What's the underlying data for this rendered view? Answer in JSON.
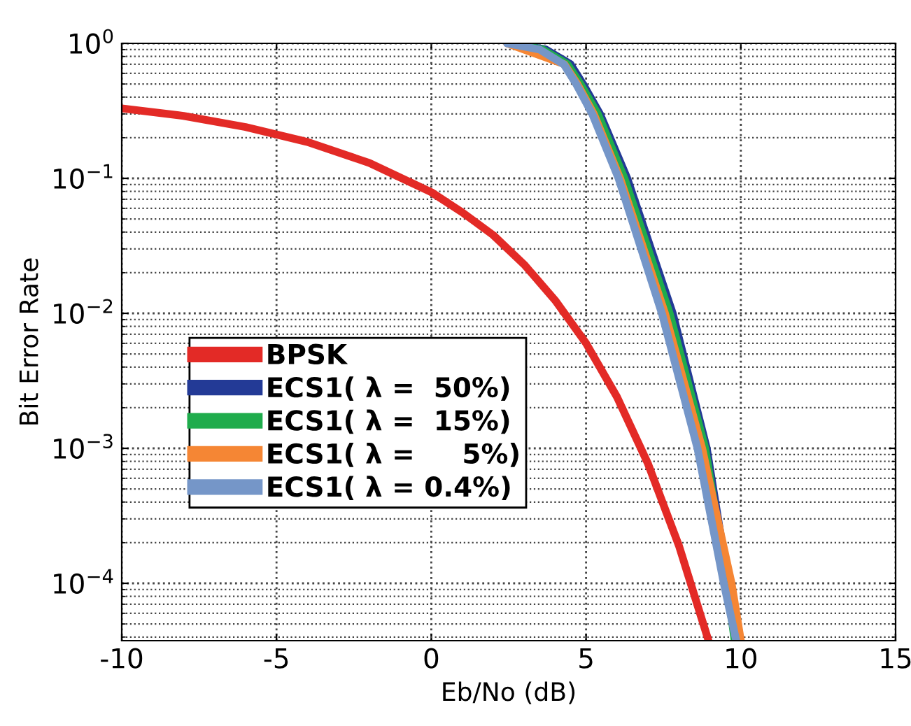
{
  "chart_data": {
    "type": "line",
    "xlabel": "Eb/No (dB)",
    "ylabel": "Bit Error Rate",
    "log": "y",
    "xlim": [
      -10,
      15
    ],
    "xticks": [
      -10,
      -5,
      0,
      5,
      10,
      15
    ],
    "ylim": [
      3.76e-05,
      1
    ],
    "yticks": [
      {
        "value": 0.0001,
        "label": "10$^{−4}$"
      },
      {
        "value": 0.001,
        "label": "10$^{−3}$"
      },
      {
        "value": 0.01,
        "label": "10$^{−2}$"
      },
      {
        "value": 0.1,
        "label": "10$^{−1}$"
      },
      {
        "value": 1,
        "label": "10$^{0}$"
      }
    ],
    "grid": true,
    "legend": "bottom left",
    "line_style": "solid",
    "marker": "none",
    "series": [
      {
        "name": "BPSK",
        "color": "#e32a26",
        "x": [
          -10,
          -8,
          -6,
          -4,
          -2,
          0,
          1,
          2,
          3,
          4,
          5,
          6,
          7,
          8,
          8.95
        ],
        "values": [
          0.33,
          0.29,
          0.24,
          0.186,
          0.13,
          0.079,
          0.056,
          0.038,
          0.023,
          0.0125,
          0.006,
          0.0024,
          0.00077,
          0.00019,
          3.8e-05
        ]
      },
      {
        "name": "ECS1( λ =  50%)",
        "color": "#233a96",
        "x": [
          2.6,
          3.7,
          4.5,
          4.9,
          5.45,
          6.33,
          7.8,
          8.9,
          9.6,
          9.9
        ],
        "values": [
          1,
          0.9,
          0.7,
          0.5,
          0.3,
          0.1,
          0.01,
          0.001,
          0.0001,
          3.76e-05
        ]
      },
      {
        "name": "ECS1( λ =  15%)",
        "color": "#1fac4c",
        "x": [
          2.55,
          3.6,
          4.4,
          4.82,
          5.38,
          6.24,
          7.7,
          8.85,
          9.55,
          9.8
        ],
        "values": [
          1,
          0.9,
          0.7,
          0.5,
          0.3,
          0.1,
          0.01,
          0.001,
          0.0001,
          3.76e-05
        ]
      },
      {
        "name": "ECS1( λ =     5%)",
        "color": "#f58634",
        "x": [
          2.45,
          4.3,
          4.72,
          5.25,
          6.1,
          7.55,
          8.75,
          9.7,
          10.0
        ],
        "values": [
          1,
          0.7,
          0.5,
          0.3,
          0.1,
          0.01,
          0.001,
          0.0001,
          3.76e-05
        ]
      },
      {
        "name": "ECS1( λ = 0.4%)",
        "color": "#7596c8",
        "x": [
          2.45,
          3.5,
          4.28,
          4.68,
          5.2,
          6.05,
          7.45,
          8.6,
          9.45,
          9.85
        ],
        "values": [
          1,
          0.9,
          0.7,
          0.5,
          0.3,
          0.1,
          0.01,
          0.001,
          0.0001,
          3.76e-05
        ]
      }
    ]
  }
}
